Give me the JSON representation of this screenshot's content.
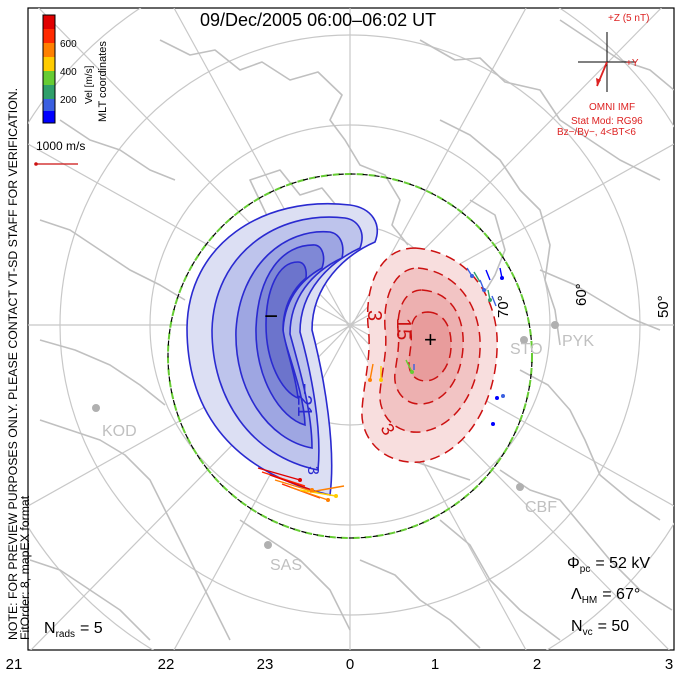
{
  "title": "09/Dec/2005 06:00–06:02 UT",
  "coordinate_system": "MLT coordinates",
  "colorbar": {
    "label": "Vel [m/s]",
    "ticks": [
      "600",
      "400",
      "200"
    ],
    "colors": [
      "#0000ff",
      "#3a5fe0",
      "#2f9f6a",
      "#66cc33",
      "#ffcc00",
      "#ff8000",
      "#ff2a00",
      "#e00000"
    ]
  },
  "velocity_scale": "1000 m/s",
  "side_note": "NOTE: FOR PREVIEW PURPOSES ONLY. PLEASE CONTACT VT-SD STAFF FOR VERIFICATION.",
  "fit_info": "FitOrder: 8, mapEX format",
  "imf": {
    "z_label": "+Z (5 nT)",
    "y_label": "+Y",
    "source": "OMNI IMF",
    "model_line1": "Stat Mod: RG96",
    "model_line2": "Bz−/By−, 4<BT<6"
  },
  "stations": [
    "STO",
    "PYK",
    "KOD",
    "SAS",
    "CBF"
  ],
  "latitude_labels": [
    "70°",
    "60°",
    "50°"
  ],
  "contour_labels": {
    "neg_center": "−",
    "pos_center": "+",
    "neg_value": "−21",
    "pos_value": "15",
    "pos_small_1": "3",
    "pos_small_2": "3",
    "neg_small": "3"
  },
  "stats": {
    "phi_symbol": "Φ",
    "phi_sub": "pc",
    "phi_value": "= 52 kV",
    "lambda_symbol": "Λ",
    "lambda_sub": "HM",
    "lambda_value": "= 67°",
    "nvc_symbol": "N",
    "nvc_sub": "vc",
    "nvc_value": "= 50",
    "nrads_symbol": "N",
    "nrads_sub": "rads",
    "nrads_value": "= 5"
  },
  "mlt_ticks": [
    "21",
    "22",
    "23",
    "0",
    "1",
    "2",
    "3"
  ],
  "colors": {
    "negative": "#2a2ad0",
    "positive": "#cc1111",
    "grid": "#c8c8c8",
    "land": "#c0c0c0",
    "imf": "#dd2222"
  }
}
